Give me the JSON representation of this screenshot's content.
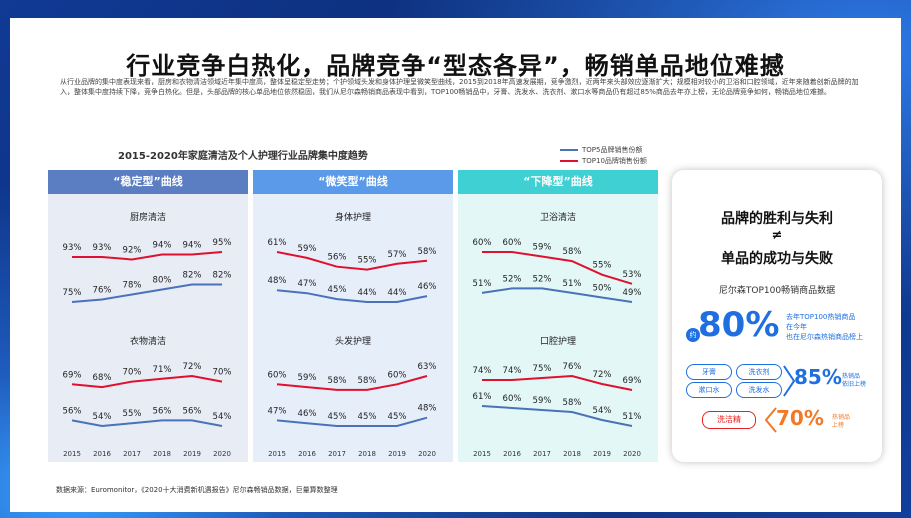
{
  "title": "行业竞争白热化，品牌竞争“型态各异”，畅销单品地位难撼",
  "intro": "从行业品牌的集中度表现来看，厨房和衣物清洁领域近年集中度高，整体呈稳定型走势；个护领域头发和身体护理呈微笑型曲线，2015到2018年高速发展期，竞争激烈，近两年来头部效应逐渐扩大；规模相对较小的卫浴和口腔领域，近年来随着创新品牌的加入，整体集中度持续下降，竞争白热化。但是，头部品牌的核心单品地位依然稳固，我们从尼尔森畅销商品表现中看到，TOP100畅销品中，牙膏、洗发水、洗衣剂、漱口水等商品仍有超过85%商品去年亦上榜，无论品牌竞争如何，畅销品地位难撼。",
  "chart_data": {
    "type": "line",
    "title": "2015-2020年家庭清洁及个人护理行业品牌集中度趋势",
    "x": [
      "2015",
      "2016",
      "2017",
      "2018",
      "2019",
      "2020"
    ],
    "legend": [
      "TOP5品牌销售份额",
      "TOP10品牌销售份额"
    ],
    "colors": {
      "top5": "#4a72b8",
      "top10": "#e0102f"
    },
    "groups": [
      {
        "header": "“稳定型”曲线",
        "color": "#5b7ec2",
        "bg": "#e7ecf5",
        "panels": [
          {
            "name": "厨房清洁",
            "top10": [
              93,
              93,
              92,
              94,
              94,
              95
            ],
            "top5": [
              75,
              76,
              78,
              80,
              82,
              82
            ]
          },
          {
            "name": "衣物清洁",
            "top10": [
              69,
              68,
              70,
              71,
              72,
              70
            ],
            "top5": [
              56,
              54,
              55,
              56,
              56,
              54
            ]
          }
        ]
      },
      {
        "header": "“微笑型”曲线",
        "color": "#5a9ae8",
        "bg": "#e6eefa",
        "panels": [
          {
            "name": "身体护理",
            "top10": [
              61,
              59,
              56,
              55,
              57,
              58
            ],
            "top5": [
              48,
              47,
              45,
              44,
              44,
              46
            ]
          },
          {
            "name": "头发护理",
            "top10": [
              60,
              59,
              58,
              58,
              60,
              63
            ],
            "top5": [
              47,
              46,
              45,
              45,
              45,
              48
            ]
          }
        ]
      },
      {
        "header": "“下降型”曲线",
        "color": "#3fd0d4",
        "bg": "#e3f7f7",
        "panels": [
          {
            "name": "卫浴清洁",
            "top10": [
              60,
              60,
              59,
              58,
              55,
              53
            ],
            "top5": [
              51,
              52,
              52,
              51,
              50,
              49
            ]
          },
          {
            "name": "口腔护理",
            "top10": [
              74,
              74,
              75,
              76,
              72,
              69
            ],
            "top5": [
              61,
              60,
              59,
              58,
              54,
              51
            ]
          }
        ]
      }
    ]
  },
  "right_card": {
    "line1": "品牌的胜利与失利",
    "line2": "≠",
    "line3": "单品的成功与失败",
    "subtitle": "尼尔森TOP100畅销商品数据",
    "big_pct": "80%",
    "small_circle": "约",
    "note1": "去年TOP100热销商品",
    "note2": "在今年",
    "note3": "也在尼尔森热销商品榜上",
    "tags_a": [
      "牙膏",
      "洗衣剂",
      "漱口水",
      "洗发水"
    ],
    "pct_85": "85%",
    "label_85a": "热销品",
    "label_85b": "依旧上榜",
    "tag_b": "洗洁精",
    "pct_70": "70%",
    "label_70a": "热销品",
    "label_70b": "上榜",
    "colors": {
      "blue": "#1f6fe0",
      "orange": "#f07a28",
      "red": "#e8231f"
    }
  },
  "source": "数据来源：Euromonitor，《2020十大消费新机遇报告》尼尔森畅销品数据，巨量算数整理"
}
